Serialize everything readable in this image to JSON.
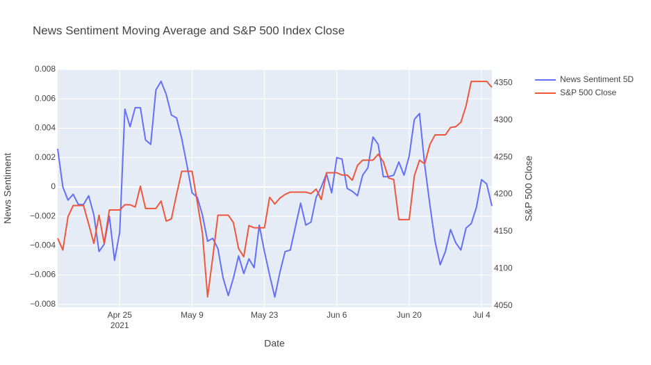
{
  "chart_data": {
    "type": "line",
    "title": "News Sentiment Moving Average and S&P 500 Index Close",
    "x_label": "Date",
    "y_label": "News Sentiment",
    "y2_label": "S&P 500 Close",
    "x": [
      "2021-04-13",
      "2021-04-14",
      "2021-04-15",
      "2021-04-16",
      "2021-04-17",
      "2021-04-18",
      "2021-04-19",
      "2021-04-20",
      "2021-04-21",
      "2021-04-22",
      "2021-04-23",
      "2021-04-24",
      "2021-04-25",
      "2021-04-26",
      "2021-04-27",
      "2021-04-28",
      "2021-04-29",
      "2021-04-30",
      "2021-05-01",
      "2021-05-02",
      "2021-05-03",
      "2021-05-04",
      "2021-05-05",
      "2021-05-06",
      "2021-05-07",
      "2021-05-08",
      "2021-05-09",
      "2021-05-10",
      "2021-05-11",
      "2021-05-12",
      "2021-05-13",
      "2021-05-14",
      "2021-05-15",
      "2021-05-16",
      "2021-05-17",
      "2021-05-18",
      "2021-05-19",
      "2021-05-20",
      "2021-05-21",
      "2021-05-22",
      "2021-05-23",
      "2021-05-24",
      "2021-05-25",
      "2021-05-26",
      "2021-05-27",
      "2021-05-28",
      "2021-05-29",
      "2021-05-30",
      "2021-05-31",
      "2021-06-01",
      "2021-06-02",
      "2021-06-03",
      "2021-06-04",
      "2021-06-05",
      "2021-06-06",
      "2021-06-07",
      "2021-06-08",
      "2021-06-09",
      "2021-06-10",
      "2021-06-11",
      "2021-06-12",
      "2021-06-13",
      "2021-06-14",
      "2021-06-15",
      "2021-06-16",
      "2021-06-17",
      "2021-06-18",
      "2021-06-19",
      "2021-06-20",
      "2021-06-21",
      "2021-06-22",
      "2021-06-23",
      "2021-06-24",
      "2021-06-25",
      "2021-06-26",
      "2021-06-27",
      "2021-06-28",
      "2021-06-29",
      "2021-06-30",
      "2021-07-01",
      "2021-07-02",
      "2021-07-03",
      "2021-07-04",
      "2021-07-05",
      "2021-07-06"
    ],
    "series": [
      {
        "name": "News Sentiment 5D",
        "color": "#636efa",
        "axis": "y",
        "values": [
          0.0026,
          0.0,
          -0.0009,
          -0.0005,
          -0.0012,
          -0.0012,
          -0.0006,
          -0.0019,
          -0.0044,
          -0.0039,
          -0.002,
          -0.005,
          -0.0031,
          0.0053,
          0.0041,
          0.0054,
          0.0054,
          0.0032,
          0.0029,
          0.0066,
          0.0072,
          0.0063,
          0.0049,
          0.0047,
          0.0033,
          0.0015,
          -0.0004,
          -0.0007,
          -0.0019,
          -0.0037,
          -0.0035,
          -0.0042,
          -0.0062,
          -0.0074,
          -0.0062,
          -0.0047,
          -0.0059,
          -0.0049,
          -0.0055,
          -0.0026,
          -0.0044,
          -0.006,
          -0.0075,
          -0.0058,
          -0.0044,
          -0.0043,
          -0.0027,
          -0.0011,
          -0.0026,
          -0.0024,
          -0.0007,
          0.0,
          0.0009,
          -0.0004,
          0.002,
          0.0019,
          -0.0001,
          -0.0003,
          -0.0006,
          0.0008,
          0.0013,
          0.0034,
          0.0029,
          0.0007,
          0.0007,
          0.0008,
          0.0017,
          0.0008,
          0.0021,
          0.0046,
          0.005,
          0.0015,
          -0.0012,
          -0.0037,
          -0.0053,
          -0.0044,
          -0.0029,
          -0.0038,
          -0.0043,
          -0.0028,
          -0.0025,
          -0.0014,
          0.0005,
          0.0002,
          -0.0013
        ]
      },
      {
        "name": "S&P 500 Close",
        "color": "#ef553b",
        "axis": "y2",
        "values": [
          4141,
          4125,
          4170,
          4185,
          4185,
          4185,
          4160,
          4134,
          4172,
          4134,
          4179,
          4179,
          4179,
          4186,
          4186,
          4183,
          4211,
          4181,
          4181,
          4181,
          4191,
          4164,
          4167,
          4200,
          4231,
          4231,
          4231,
          4190,
          4148,
          4062,
          4115,
          4172,
          4172,
          4172,
          4162,
          4127,
          4116,
          4158,
          4155,
          4155,
          4155,
          4196,
          4187,
          4195,
          4200,
          4203,
          4203,
          4203,
          4203,
          4201,
          4207,
          4193,
          4229,
          4229,
          4229,
          4226,
          4226,
          4219,
          4239,
          4246,
          4246,
          4246,
          4254,
          4244,
          4222,
          4220,
          4166,
          4166,
          4166,
          4225,
          4246,
          4241,
          4267,
          4280,
          4280,
          4280,
          4290,
          4291,
          4297,
          4319,
          4352,
          4352,
          4352,
          4352,
          4344
        ]
      }
    ],
    "xlim": [
      "2021-04-13",
      "2021-07-06"
    ],
    "xticks": [
      {
        "value": "2021-04-25",
        "label": "Apr 25",
        "sublabel": "2021"
      },
      {
        "value": "2021-05-09",
        "label": "May 9"
      },
      {
        "value": "2021-05-23",
        "label": "May 23"
      },
      {
        "value": "2021-06-06",
        "label": "Jun 6"
      },
      {
        "value": "2021-06-20",
        "label": "Jun 20"
      },
      {
        "value": "2021-07-04",
        "label": "Jul 4"
      }
    ],
    "ylim": [
      -0.0082,
      0.008
    ],
    "yticks": [
      {
        "value": -0.008,
        "label": "−0.008"
      },
      {
        "value": -0.006,
        "label": "−0.006"
      },
      {
        "value": -0.004,
        "label": "−0.004"
      },
      {
        "value": -0.002,
        "label": "−0.002"
      },
      0,
      0.002,
      0.004,
      0.006,
      0.008
    ],
    "y2lim": [
      4048,
      4368
    ],
    "y2ticks": [
      4050,
      4100,
      4150,
      4200,
      4250,
      4300,
      4350
    ],
    "grid": true,
    "legend": "outside-right"
  }
}
